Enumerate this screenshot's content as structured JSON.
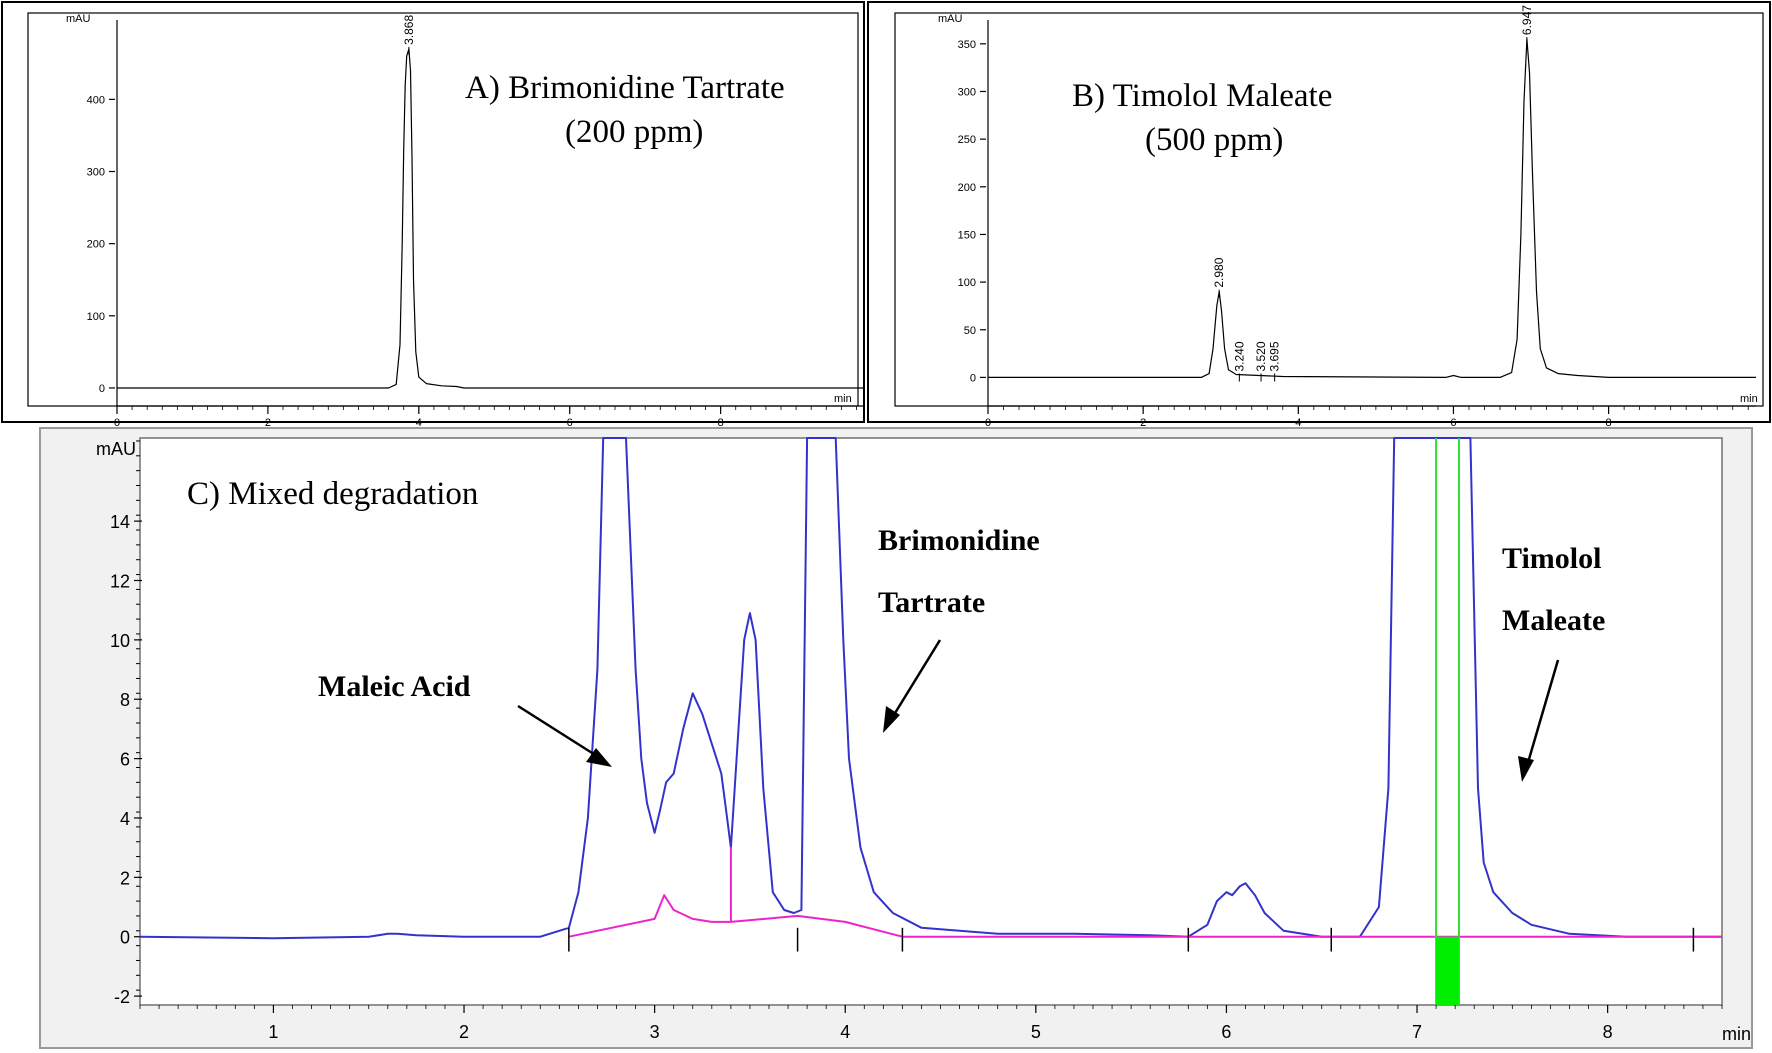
{
  "chart_data": [
    {
      "type": "line",
      "panel": "A",
      "title": "A) Brimonidine Tartrate",
      "subtitle": "(200 ppm)",
      "ylabel": "mAU",
      "xlabel": "min",
      "xlim": [
        0,
        9.9
      ],
      "ylim": [
        -25,
        510
      ],
      "xticks": [
        "0",
        "2",
        "4",
        "6",
        "8"
      ],
      "yticks": [
        "0",
        "100",
        "200",
        "300",
        "400"
      ],
      "peaks": [
        {
          "rt": 3.868,
          "label": "3.868",
          "height": 470
        }
      ],
      "series": [
        {
          "x": [
            0,
            3.6,
            3.7,
            3.75,
            3.78,
            3.8,
            3.82,
            3.84,
            3.868,
            3.89,
            3.91,
            3.93,
            3.96,
            4.0,
            4.1,
            4.3,
            4.5,
            4.6,
            9.9
          ],
          "y": [
            0,
            0,
            5,
            60,
            200,
            330,
            420,
            460,
            470,
            440,
            320,
            150,
            50,
            15,
            6,
            3,
            2,
            0,
            0
          ]
        }
      ]
    },
    {
      "type": "line",
      "panel": "B",
      "title": "B) Timolol Maleate",
      "subtitle": "(500 ppm)",
      "ylabel": "mAU",
      "xlabel": "min",
      "xlim": [
        0,
        9.9
      ],
      "ylim": [
        -30,
        375
      ],
      "xticks": [
        "0",
        "2",
        "4",
        "6",
        "8"
      ],
      "yticks": [
        "0",
        "50",
        "100",
        "150",
        "200",
        "250",
        "300",
        "350"
      ],
      "peaks": [
        {
          "rt": 2.98,
          "label": "2.980",
          "height": 90
        },
        {
          "rt": 3.24,
          "label": "3.240",
          "height": 2
        },
        {
          "rt": 3.52,
          "label": "3.520",
          "height": 2
        },
        {
          "rt": 3.695,
          "label": "3.695",
          "height": 2
        },
        {
          "rt": 6.947,
          "label": "6.947",
          "height": 355
        }
      ],
      "series": [
        {
          "x": [
            0,
            2.75,
            2.85,
            2.9,
            2.95,
            2.98,
            3.01,
            3.05,
            3.1,
            3.2,
            3.5,
            3.8,
            5.9,
            6.0,
            6.1,
            6.6,
            6.75,
            6.82,
            6.87,
            6.91,
            6.947,
            6.98,
            7.02,
            7.07,
            7.12,
            7.2,
            7.35,
            7.6,
            8.0,
            9.9
          ],
          "y": [
            0,
            0,
            4,
            30,
            75,
            90,
            70,
            30,
            8,
            3,
            2,
            1,
            0,
            2,
            0,
            0,
            5,
            40,
            150,
            290,
            355,
            320,
            210,
            90,
            30,
            10,
            4,
            2,
            0,
            0
          ]
        }
      ]
    },
    {
      "type": "line",
      "panel": "C",
      "title": "C) Mixed degradation",
      "ylabel": "mAU",
      "xlabel": "min",
      "xlim": [
        0.3,
        8.6
      ],
      "ylim": [
        -2.3,
        16.8
      ],
      "xticks": [
        "1",
        "2",
        "3",
        "4",
        "5",
        "6",
        "7",
        "8"
      ],
      "yticks": [
        "-2",
        "0",
        "2",
        "4",
        "6",
        "8",
        "10",
        "12",
        "14"
      ],
      "annotations": [
        {
          "label": "Maleic Acid"
        },
        {
          "lines": [
            "Brimonidine",
            "Tartrate"
          ]
        },
        {
          "lines": [
            "Timolol",
            "Maleate"
          ]
        }
      ],
      "series": [
        {
          "color": "#3333cc",
          "x": [
            0.3,
            1.0,
            1.5,
            1.6,
            1.65,
            1.75,
            2.0,
            2.4,
            2.55,
            2.6,
            2.65,
            2.7,
            2.73,
            2.85,
            2.9,
            2.93,
            2.96,
            3.0,
            3.03,
            3.06,
            3.1,
            3.15,
            3.2,
            3.25,
            3.3,
            3.35,
            3.38,
            3.4,
            3.43,
            3.47,
            3.5,
            3.53,
            3.57,
            3.62,
            3.68,
            3.73,
            3.77,
            3.8,
            3.95,
            3.99,
            4.02,
            4.08,
            4.15,
            4.25,
            4.4,
            4.8,
            5.2,
            5.6,
            5.8,
            5.9,
            5.95,
            6.0,
            6.03,
            6.07,
            6.1,
            6.15,
            6.2,
            6.3,
            6.5,
            6.7,
            6.8,
            6.85,
            6.88,
            7.28,
            7.32,
            7.35,
            7.4,
            7.5,
            7.6,
            7.8,
            8.1,
            8.6
          ],
          "y": [
            0,
            -0.05,
            0,
            0.1,
            0.1,
            0.05,
            0,
            0,
            0.3,
            1.5,
            4.0,
            9.0,
            17.5,
            17.5,
            9.0,
            6.0,
            4.5,
            3.5,
            4.3,
            5.2,
            5.5,
            7.0,
            8.2,
            7.5,
            6.5,
            5.5,
            4.0,
            3.0,
            6.0,
            10.0,
            10.9,
            10.0,
            5.0,
            1.5,
            0.9,
            0.8,
            0.9,
            17.5,
            17.5,
            10.0,
            6.0,
            3.0,
            1.5,
            0.8,
            0.3,
            0.1,
            0.1,
            0.05,
            0.0,
            0.4,
            1.2,
            1.5,
            1.4,
            1.7,
            1.8,
            1.4,
            0.8,
            0.2,
            0,
            0,
            1.0,
            5.0,
            17.5,
            17.5,
            5.0,
            2.5,
            1.5,
            0.8,
            0.4,
            0.1,
            0,
            0
          ]
        },
        {
          "color": "#ee22cc",
          "x": [
            2.55,
            3.0,
            3.05,
            3.1,
            3.2,
            3.3,
            3.38,
            3.4,
            3.4,
            3.4,
            3.75,
            4.0,
            4.3,
            5.8,
            8.6
          ],
          "y": [
            0,
            0.6,
            1.4,
            0.9,
            0.6,
            0.5,
            0.5,
            0.5,
            3.0,
            0.5,
            0.7,
            0.5,
            0,
            0,
            0
          ]
        }
      ],
      "markers": {
        "green_window": [
          7.1,
          7.22
        ]
      }
    }
  ]
}
